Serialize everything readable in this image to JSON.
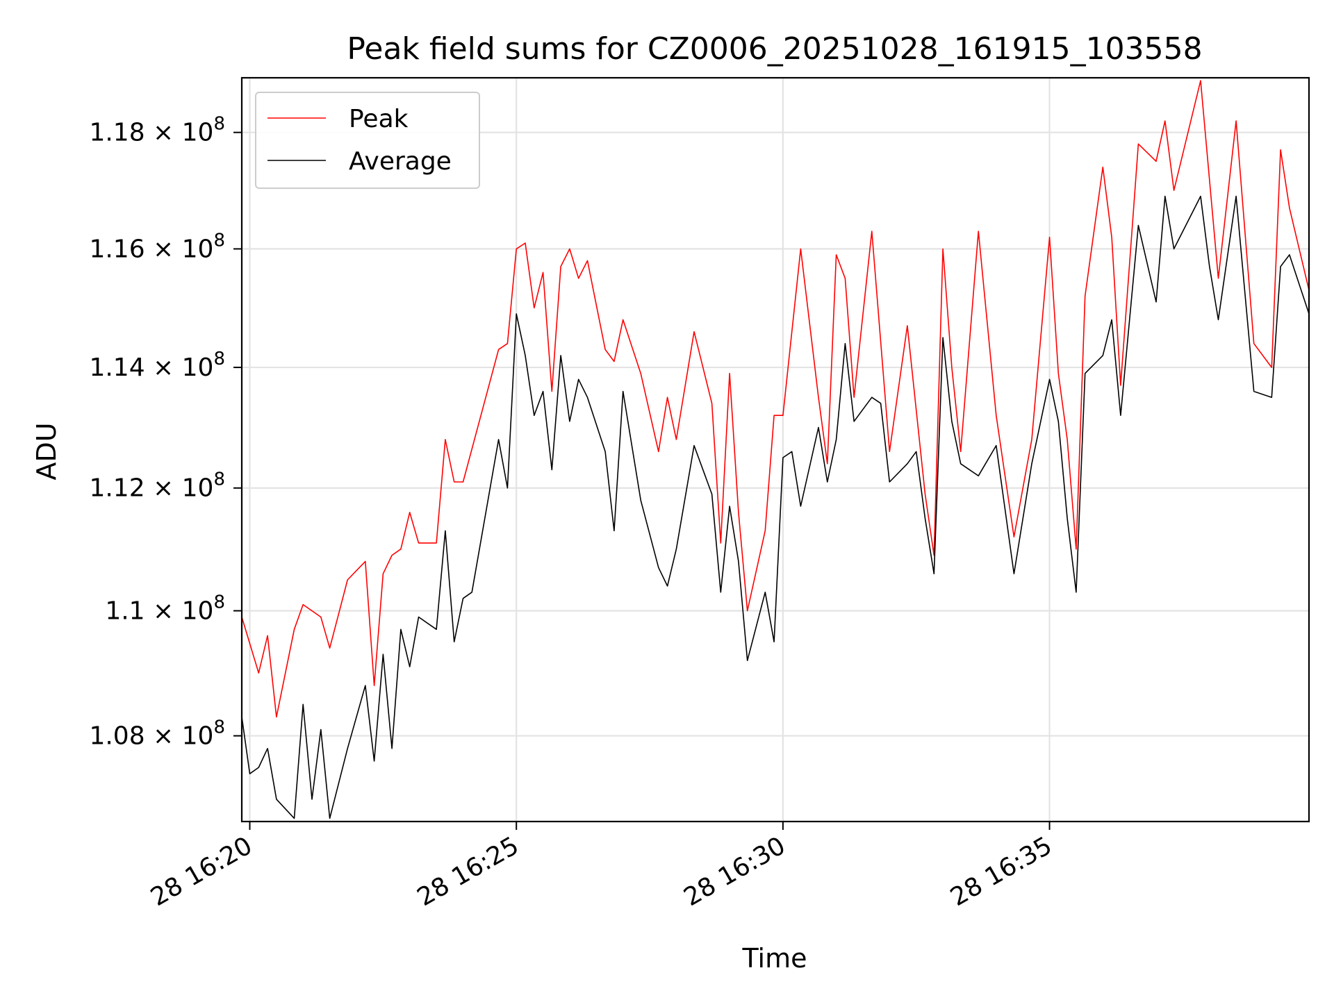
{
  "chart_data": {
    "type": "line",
    "title": "Peak field sums for CZ0006_20251028_161915_103558",
    "xlabel": "Time",
    "ylabel": "ADU",
    "y_scale": "log",
    "ylim": [
      106650000,
      118950000
    ],
    "xlim": [
      "2025-10-28 16:19:51",
      "2025-10-28 16:39:52"
    ],
    "grid": true,
    "legend_position": "upper-left",
    "x_ticks": [
      {
        "time": "16:20:00",
        "label": "28 16:20"
      },
      {
        "time": "16:25:00",
        "label": "28 16:25"
      },
      {
        "time": "16:30:00",
        "label": "28 16:30"
      },
      {
        "time": "16:35:00",
        "label": "28 16:35"
      }
    ],
    "y_ticks": [
      {
        "value": 108000000,
        "mantissa": "1.08",
        "exponent": "8"
      },
      {
        "value": 110000000,
        "mantissa": "1.1",
        "exponent": "8"
      },
      {
        "value": 112000000,
        "mantissa": "1.12",
        "exponent": "8"
      },
      {
        "value": 114000000,
        "mantissa": "1.14",
        "exponent": "8"
      },
      {
        "value": 116000000,
        "mantissa": "1.16",
        "exponent": "8"
      },
      {
        "value": 118000000,
        "mantissa": "1.18",
        "exponent": "8"
      }
    ],
    "series": [
      {
        "name": "Peak",
        "color": "#ff0000",
        "points": [
          [
            "16:19:51",
            109.9
          ],
          [
            "16:20:10",
            109.0
          ],
          [
            "16:20:20",
            109.6
          ],
          [
            "16:20:30",
            108.3
          ],
          [
            "16:20:50",
            109.7
          ],
          [
            "16:21:00",
            110.1
          ],
          [
            "16:21:20",
            109.9
          ],
          [
            "16:21:30",
            109.4
          ],
          [
            "16:21:50",
            110.5
          ],
          [
            "16:22:10",
            110.8
          ],
          [
            "16:22:20",
            108.8
          ],
          [
            "16:22:30",
            110.6
          ],
          [
            "16:22:40",
            110.9
          ],
          [
            "16:22:50",
            111.0
          ],
          [
            "16:23:00",
            111.6
          ],
          [
            "16:23:10",
            111.1
          ],
          [
            "16:23:30",
            111.1
          ],
          [
            "16:23:40",
            112.8
          ],
          [
            "16:23:50",
            112.1
          ],
          [
            "16:24:00",
            112.1
          ],
          [
            "16:24:40",
            114.3
          ],
          [
            "16:24:50",
            114.4
          ],
          [
            "16:25:00",
            116.0
          ],
          [
            "16:25:10",
            116.1
          ],
          [
            "16:25:20",
            115.0
          ],
          [
            "16:25:30",
            115.6
          ],
          [
            "16:25:40",
            113.6
          ],
          [
            "16:25:50",
            115.7
          ],
          [
            "16:26:00",
            116.0
          ],
          [
            "16:26:10",
            115.5
          ],
          [
            "16:26:20",
            115.8
          ],
          [
            "16:26:40",
            114.3
          ],
          [
            "16:26:50",
            114.1
          ],
          [
            "16:27:00",
            114.8
          ],
          [
            "16:27:20",
            113.9
          ],
          [
            "16:27:40",
            112.6
          ],
          [
            "16:27:50",
            113.5
          ],
          [
            "16:28:00",
            112.8
          ],
          [
            "16:28:20",
            114.6
          ],
          [
            "16:28:40",
            113.4
          ],
          [
            "16:28:50",
            111.1
          ],
          [
            "16:29:00",
            113.9
          ],
          [
            "16:29:10",
            111.6
          ],
          [
            "16:29:20",
            110.0
          ],
          [
            "16:29:40",
            111.3
          ],
          [
            "16:29:50",
            113.2
          ],
          [
            "16:30:00",
            113.2
          ],
          [
            "16:30:20",
            116.0
          ],
          [
            "16:30:40",
            113.5
          ],
          [
            "16:30:50",
            112.4
          ],
          [
            "16:31:00",
            115.9
          ],
          [
            "16:31:10",
            115.5
          ],
          [
            "16:31:20",
            113.5
          ],
          [
            "16:31:40",
            116.3
          ],
          [
            "16:32:00",
            112.6
          ],
          [
            "16:32:20",
            114.7
          ],
          [
            "16:32:40",
            111.9
          ],
          [
            "16:32:50",
            110.9
          ],
          [
            "16:33:00",
            116.0
          ],
          [
            "16:33:10",
            114.0
          ],
          [
            "16:33:20",
            112.6
          ],
          [
            "16:33:40",
            116.3
          ],
          [
            "16:34:00",
            113.2
          ],
          [
            "16:34:20",
            111.2
          ],
          [
            "16:34:40",
            112.8
          ],
          [
            "16:35:00",
            116.2
          ],
          [
            "16:35:10",
            113.9
          ],
          [
            "16:35:20",
            112.8
          ],
          [
            "16:35:30",
            111.0
          ],
          [
            "16:35:40",
            115.2
          ],
          [
            "16:36:00",
            117.4
          ],
          [
            "16:36:10",
            116.2
          ],
          [
            "16:36:20",
            113.7
          ],
          [
            "16:36:40",
            117.8
          ],
          [
            "16:37:00",
            117.5
          ],
          [
            "16:37:10",
            118.2
          ],
          [
            "16:37:20",
            117.0
          ],
          [
            "16:37:50",
            118.9
          ],
          [
            "16:38:10",
            115.5
          ],
          [
            "16:38:30",
            118.2
          ],
          [
            "16:38:50",
            114.4
          ],
          [
            "16:39:10",
            114.0
          ],
          [
            "16:39:20",
            117.7
          ],
          [
            "16:39:30",
            116.7
          ],
          [
            "16:39:52",
            115.3
          ]
        ]
      },
      {
        "name": "Average",
        "color": "#000000",
        "points": [
          [
            "16:19:51",
            108.3
          ],
          [
            "16:20:00",
            107.4
          ],
          [
            "16:20:10",
            107.5
          ],
          [
            "16:20:20",
            107.8
          ],
          [
            "16:20:30",
            107.0
          ],
          [
            "16:20:50",
            106.7
          ],
          [
            "16:21:00",
            108.5
          ],
          [
            "16:21:10",
            107.0
          ],
          [
            "16:21:20",
            108.1
          ],
          [
            "16:21:30",
            106.7
          ],
          [
            "16:21:50",
            107.8
          ],
          [
            "16:22:10",
            108.8
          ],
          [
            "16:22:20",
            107.6
          ],
          [
            "16:22:30",
            109.3
          ],
          [
            "16:22:40",
            107.8
          ],
          [
            "16:22:50",
            109.7
          ],
          [
            "16:23:00",
            109.1
          ],
          [
            "16:23:10",
            109.9
          ],
          [
            "16:23:30",
            109.7
          ],
          [
            "16:23:40",
            111.3
          ],
          [
            "16:23:50",
            109.5
          ],
          [
            "16:24:00",
            110.2
          ],
          [
            "16:24:10",
            110.3
          ],
          [
            "16:24:40",
            112.8
          ],
          [
            "16:24:50",
            112.0
          ],
          [
            "16:25:00",
            114.9
          ],
          [
            "16:25:10",
            114.2
          ],
          [
            "16:25:20",
            113.2
          ],
          [
            "16:25:30",
            113.6
          ],
          [
            "16:25:40",
            112.3
          ],
          [
            "16:25:50",
            114.2
          ],
          [
            "16:26:00",
            113.1
          ],
          [
            "16:26:10",
            113.8
          ],
          [
            "16:26:20",
            113.5
          ],
          [
            "16:26:40",
            112.6
          ],
          [
            "16:26:50",
            111.3
          ],
          [
            "16:27:00",
            113.6
          ],
          [
            "16:27:20",
            111.8
          ],
          [
            "16:27:40",
            110.7
          ],
          [
            "16:27:50",
            110.4
          ],
          [
            "16:28:00",
            111.0
          ],
          [
            "16:28:20",
            112.7
          ],
          [
            "16:28:40",
            111.9
          ],
          [
            "16:28:50",
            110.3
          ],
          [
            "16:29:00",
            111.7
          ],
          [
            "16:29:10",
            110.8
          ],
          [
            "16:29:20",
            109.2
          ],
          [
            "16:29:40",
            110.3
          ],
          [
            "16:29:50",
            109.5
          ],
          [
            "16:30:00",
            112.5
          ],
          [
            "16:30:10",
            112.6
          ],
          [
            "16:30:20",
            111.7
          ],
          [
            "16:30:40",
            113.0
          ],
          [
            "16:30:50",
            112.1
          ],
          [
            "16:31:00",
            112.8
          ],
          [
            "16:31:10",
            114.4
          ],
          [
            "16:31:20",
            113.1
          ],
          [
            "16:31:40",
            113.5
          ],
          [
            "16:31:50",
            113.4
          ],
          [
            "16:32:00",
            112.1
          ],
          [
            "16:32:20",
            112.4
          ],
          [
            "16:32:30",
            112.6
          ],
          [
            "16:32:40",
            111.5
          ],
          [
            "16:32:50",
            110.6
          ],
          [
            "16:33:00",
            114.5
          ],
          [
            "16:33:10",
            113.1
          ],
          [
            "16:33:20",
            112.4
          ],
          [
            "16:33:40",
            112.2
          ],
          [
            "16:34:00",
            112.7
          ],
          [
            "16:34:20",
            110.6
          ],
          [
            "16:34:40",
            112.4
          ],
          [
            "16:35:00",
            113.8
          ],
          [
            "16:35:10",
            113.1
          ],
          [
            "16:35:20",
            111.5
          ],
          [
            "16:35:30",
            110.3
          ],
          [
            "16:35:40",
            113.9
          ],
          [
            "16:36:00",
            114.2
          ],
          [
            "16:36:10",
            114.8
          ],
          [
            "16:36:20",
            113.2
          ],
          [
            "16:36:40",
            116.4
          ],
          [
            "16:37:00",
            115.1
          ],
          [
            "16:37:10",
            116.9
          ],
          [
            "16:37:20",
            116.0
          ],
          [
            "16:37:50",
            116.9
          ],
          [
            "16:38:00",
            115.7
          ],
          [
            "16:38:10",
            114.8
          ],
          [
            "16:38:30",
            116.9
          ],
          [
            "16:38:50",
            113.6
          ],
          [
            "16:39:10",
            113.5
          ],
          [
            "16:39:20",
            115.7
          ],
          [
            "16:39:30",
            115.9
          ],
          [
            "16:39:52",
            114.9
          ]
        ]
      }
    ]
  }
}
